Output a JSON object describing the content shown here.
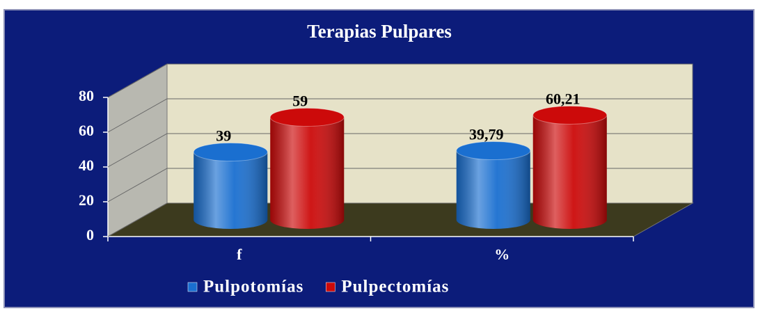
{
  "chart_data": {
    "type": "bar",
    "title": "Terapias Pulpares",
    "categories": [
      "f",
      "%"
    ],
    "series": [
      {
        "name": "Pulpotomías",
        "color": "#1a6fd0",
        "values": [
          39,
          39.79
        ],
        "value_labels": [
          "39",
          "39,79"
        ]
      },
      {
        "name": "Pulpectomías",
        "color": "#cc0a0a",
        "values": [
          59,
          60.21
        ],
        "value_labels": [
          "59",
          "60,21"
        ]
      }
    ],
    "ylim": [
      0,
      80
    ],
    "yticks": [
      0,
      20,
      40,
      60,
      80
    ],
    "grid": true,
    "legend": "bottom"
  }
}
